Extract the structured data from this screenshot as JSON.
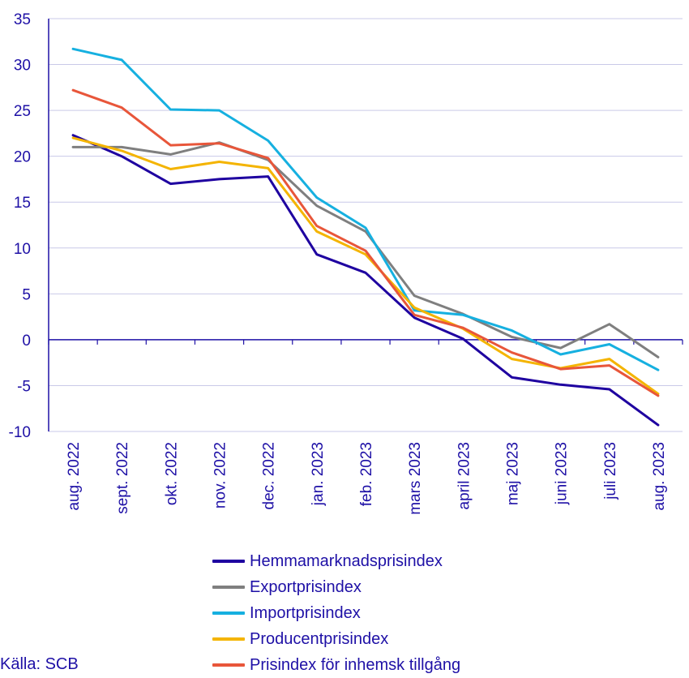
{
  "chart_data": {
    "type": "line",
    "title": "",
    "xlabel": "",
    "ylabel": "",
    "ylim": [
      -10,
      35
    ],
    "yticks": [
      35,
      30,
      25,
      20,
      15,
      10,
      5,
      0,
      -5,
      -10
    ],
    "grid": true,
    "categories": [
      "aug. 2022",
      "sept. 2022",
      "okt. 2022",
      "nov. 2022",
      "dec. 2022",
      "jan. 2023",
      "feb. 2023",
      "mars 2023",
      "april 2023",
      "maj 2023",
      "juni 2023",
      "juli 2023",
      "aug. 2023"
    ],
    "series": [
      {
        "name": "Hemmamarknadsprisindex",
        "color": "#1e00a0",
        "values": [
          22.3,
          20.0,
          17.0,
          17.5,
          17.8,
          9.3,
          7.3,
          2.4,
          0.1,
          -4.1,
          -4.9,
          -5.4,
          -9.3
        ]
      },
      {
        "name": "Exportprisindex",
        "color": "#7f7f7f",
        "values": [
          21.0,
          21.0,
          20.2,
          21.5,
          19.6,
          14.6,
          11.8,
          4.8,
          2.8,
          0.3,
          -0.9,
          1.7,
          -1.9
        ]
      },
      {
        "name": "Importprisindex",
        "color": "#16b0e0",
        "values": [
          31.7,
          30.5,
          25.1,
          25.0,
          21.7,
          15.5,
          12.2,
          3.2,
          2.7,
          1.0,
          -1.6,
          -0.5,
          -3.3
        ]
      },
      {
        "name": "Producentprisindex",
        "color": "#f4b400",
        "values": [
          22.0,
          20.6,
          18.6,
          19.4,
          18.7,
          11.8,
          9.3,
          3.5,
          1.2,
          -2.1,
          -3.1,
          -2.1,
          -5.9
        ]
      },
      {
        "name": "Prisindex för inhemsk tillgång",
        "color": "#e8563a",
        "values": [
          27.2,
          25.3,
          21.2,
          21.4,
          19.8,
          12.4,
          9.7,
          2.7,
          1.3,
          -1.4,
          -3.2,
          -2.8,
          -6.1
        ]
      }
    ],
    "legend_position": "bottom"
  },
  "source": "Källa: SCB"
}
